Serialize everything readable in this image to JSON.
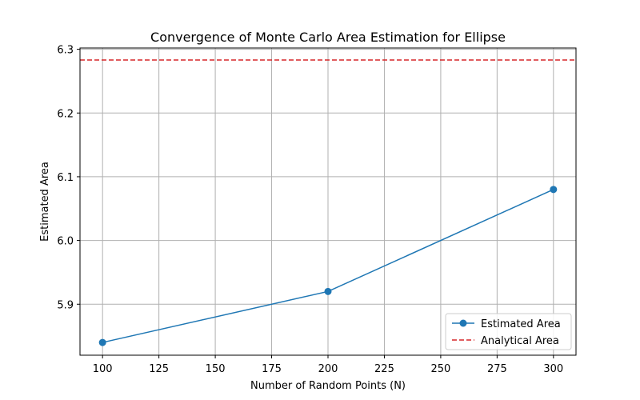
{
  "chart_data": {
    "type": "line",
    "title": "Convergence of Monte Carlo Area Estimation for Ellipse",
    "xlabel": "Number of Random Points (N)",
    "ylabel": "Estimated Area",
    "xlim": [
      90,
      310
    ],
    "ylim": [
      5.82,
      6.302
    ],
    "xticks": [
      100,
      125,
      150,
      175,
      200,
      225,
      250,
      275,
      300
    ],
    "yticks": [
      5.9,
      6.0,
      6.1,
      6.2,
      6.3
    ],
    "xtick_labels": [
      "100",
      "125",
      "150",
      "175",
      "200",
      "225",
      "250",
      "275",
      "300"
    ],
    "ytick_labels": [
      "5.9",
      "6.0",
      "6.1",
      "6.2",
      "6.3"
    ],
    "grid": true,
    "legend_position": "lower-right",
    "series": [
      {
        "name": "Estimated Area",
        "x": [
          100,
          200,
          300
        ],
        "y": [
          5.84,
          5.92,
          6.08
        ],
        "color": "#1f77b4",
        "marker": "circle",
        "style": "solid"
      }
    ],
    "reference_lines": [
      {
        "name": "Analytical Area",
        "y": 6.2832,
        "color": "#d62728",
        "style": "dashed"
      }
    ]
  }
}
